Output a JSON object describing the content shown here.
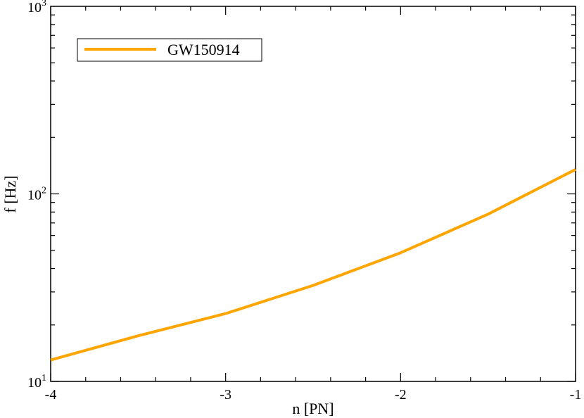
{
  "chart_data": {
    "type": "line",
    "title": "",
    "xlabel": "n [PN]",
    "ylabel": "f [Hz]",
    "xlim": [
      -4,
      -1
    ],
    "ylim": [
      10,
      1000
    ],
    "yscale": "log",
    "grid": false,
    "legend_position": "top-left",
    "x_ticks": [
      {
        "value": -4,
        "label": "-4"
      },
      {
        "value": -3,
        "label": "-3"
      },
      {
        "value": -2,
        "label": "-2"
      },
      {
        "value": -1,
        "label": "-1"
      }
    ],
    "y_ticks": [
      {
        "value": 10,
        "base": "10",
        "exp": "1"
      },
      {
        "value": 100,
        "base": "10",
        "exp": "2"
      },
      {
        "value": 1000,
        "base": "10",
        "exp": "3"
      }
    ],
    "series": [
      {
        "name": "GW150914",
        "color": "#FFA500",
        "x": [
          -4,
          -3.5,
          -3,
          -2.5,
          -2,
          -1.5,
          -1
        ],
        "y": [
          13,
          17.5,
          23,
          32.5,
          48.5,
          78,
          135
        ]
      }
    ]
  }
}
